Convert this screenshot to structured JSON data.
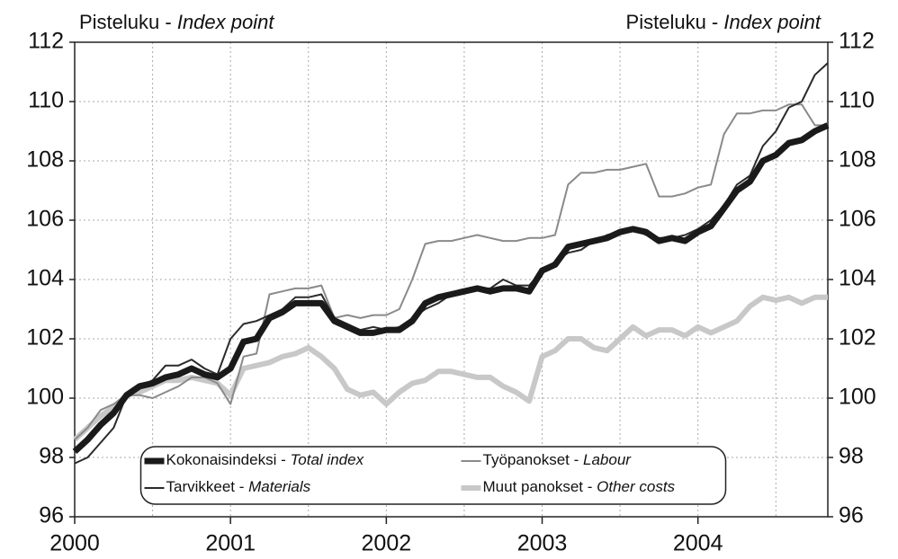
{
  "chart_data": {
    "type": "line",
    "y_label": "Pisteluku - Index point",
    "y2_label": "Pisteluku - Index point",
    "categories": [
      "2000",
      null,
      null,
      null,
      null,
      null,
      null,
      null,
      null,
      null,
      null,
      null,
      "2001",
      null,
      null,
      null,
      null,
      null,
      null,
      null,
      null,
      null,
      null,
      null,
      "2002",
      null,
      null,
      null,
      null,
      null,
      null,
      null,
      null,
      null,
      null,
      null,
      "2003",
      null,
      null,
      null,
      null,
      null,
      null,
      null,
      null,
      null,
      null,
      null,
      "2004",
      null,
      null,
      null,
      null,
      null,
      null,
      null,
      null,
      null,
      null
    ],
    "ylim": [
      96,
      112
    ],
    "yticks": [
      96,
      98,
      100,
      102,
      104,
      106,
      108,
      110,
      112
    ],
    "y2lim": [
      96,
      112
    ],
    "y2ticks": [
      96,
      98,
      100,
      102,
      104,
      106,
      108,
      110,
      112
    ],
    "grid": true,
    "legend": "lower center",
    "series": [
      {
        "name": "Kokonaisindeksi - Total index",
        "color": "#1a1a1a",
        "values": [
          98.2,
          98.6,
          99.1,
          99.5,
          100.1,
          100.4,
          100.5,
          100.7,
          100.8,
          101.0,
          100.8,
          100.7,
          101.0,
          101.9,
          102.0,
          102.7,
          102.9,
          103.2,
          103.2,
          103.2,
          102.6,
          102.4,
          102.2,
          102.2,
          102.3,
          102.3,
          102.6,
          103.2,
          103.4,
          103.5,
          103.6,
          103.7,
          103.6,
          103.7,
          103.7,
          103.6,
          104.3,
          104.5,
          105.1,
          105.2,
          105.3,
          105.4,
          105.6,
          105.7,
          105.6,
          105.3,
          105.4,
          105.3,
          105.6,
          105.8,
          106.4,
          107.0,
          107.3,
          108.0,
          108.2,
          108.6,
          108.7,
          109.0,
          109.2
        ]
      },
      {
        "name": "Tarvikkeet - Materials",
        "color": "#2a2a2a",
        "values": [
          97.8,
          98.0,
          98.5,
          99.0,
          100.1,
          100.4,
          100.6,
          101.1,
          101.1,
          101.3,
          101.0,
          100.8,
          102.0,
          102.5,
          102.6,
          102.8,
          103.0,
          103.4,
          103.4,
          103.5,
          102.7,
          102.5,
          102.3,
          102.4,
          102.3,
          102.4,
          102.7,
          103.0,
          103.2,
          103.5,
          103.6,
          103.7,
          103.7,
          104.0,
          103.8,
          103.8,
          104.3,
          104.6,
          104.9,
          105.0,
          105.3,
          105.5,
          105.6,
          105.7,
          105.5,
          105.4,
          105.4,
          105.5,
          105.7,
          106.0,
          106.5,
          107.2,
          107.5,
          108.5,
          109.0,
          109.8,
          110.0,
          110.9,
          111.3
        ]
      },
      {
        "name": "Työpanokset - Labour",
        "color": "#8a8a8a",
        "values": [
          98.6,
          99.0,
          99.6,
          99.8,
          100.1,
          100.1,
          100.0,
          100.2,
          100.4,
          100.7,
          100.7,
          100.5,
          99.8,
          101.4,
          101.5,
          103.5,
          103.6,
          103.7,
          103.7,
          103.8,
          102.7,
          102.8,
          102.7,
          102.8,
          102.8,
          103.0,
          104.0,
          105.2,
          105.3,
          105.3,
          105.4,
          105.5,
          105.4,
          105.3,
          105.3,
          105.4,
          105.4,
          105.5,
          107.2,
          107.6,
          107.6,
          107.7,
          107.7,
          107.8,
          107.9,
          106.8,
          106.8,
          106.9,
          107.1,
          107.2,
          108.9,
          109.6,
          109.6,
          109.7,
          109.7,
          109.9,
          109.9,
          109.2,
          109.2
        ]
      },
      {
        "name": "Muut panokset - Other costs",
        "color": "#c8c8c8",
        "values": [
          98.6,
          99.0,
          99.4,
          99.7,
          100.1,
          100.2,
          100.4,
          100.6,
          100.6,
          100.7,
          100.6,
          100.5,
          100.1,
          101.0,
          101.1,
          101.2,
          101.4,
          101.5,
          101.7,
          101.4,
          101.0,
          100.3,
          100.1,
          100.2,
          99.8,
          100.2,
          100.5,
          100.6,
          100.9,
          100.9,
          100.8,
          100.7,
          100.7,
          100.4,
          100.2,
          99.9,
          101.4,
          101.6,
          102.0,
          102.0,
          101.7,
          101.6,
          102.0,
          102.4,
          102.1,
          102.3,
          102.3,
          102.1,
          102.4,
          102.2,
          102.4,
          102.6,
          103.1,
          103.4,
          103.3,
          103.4,
          103.2,
          103.4,
          103.4
        ]
      }
    ]
  }
}
